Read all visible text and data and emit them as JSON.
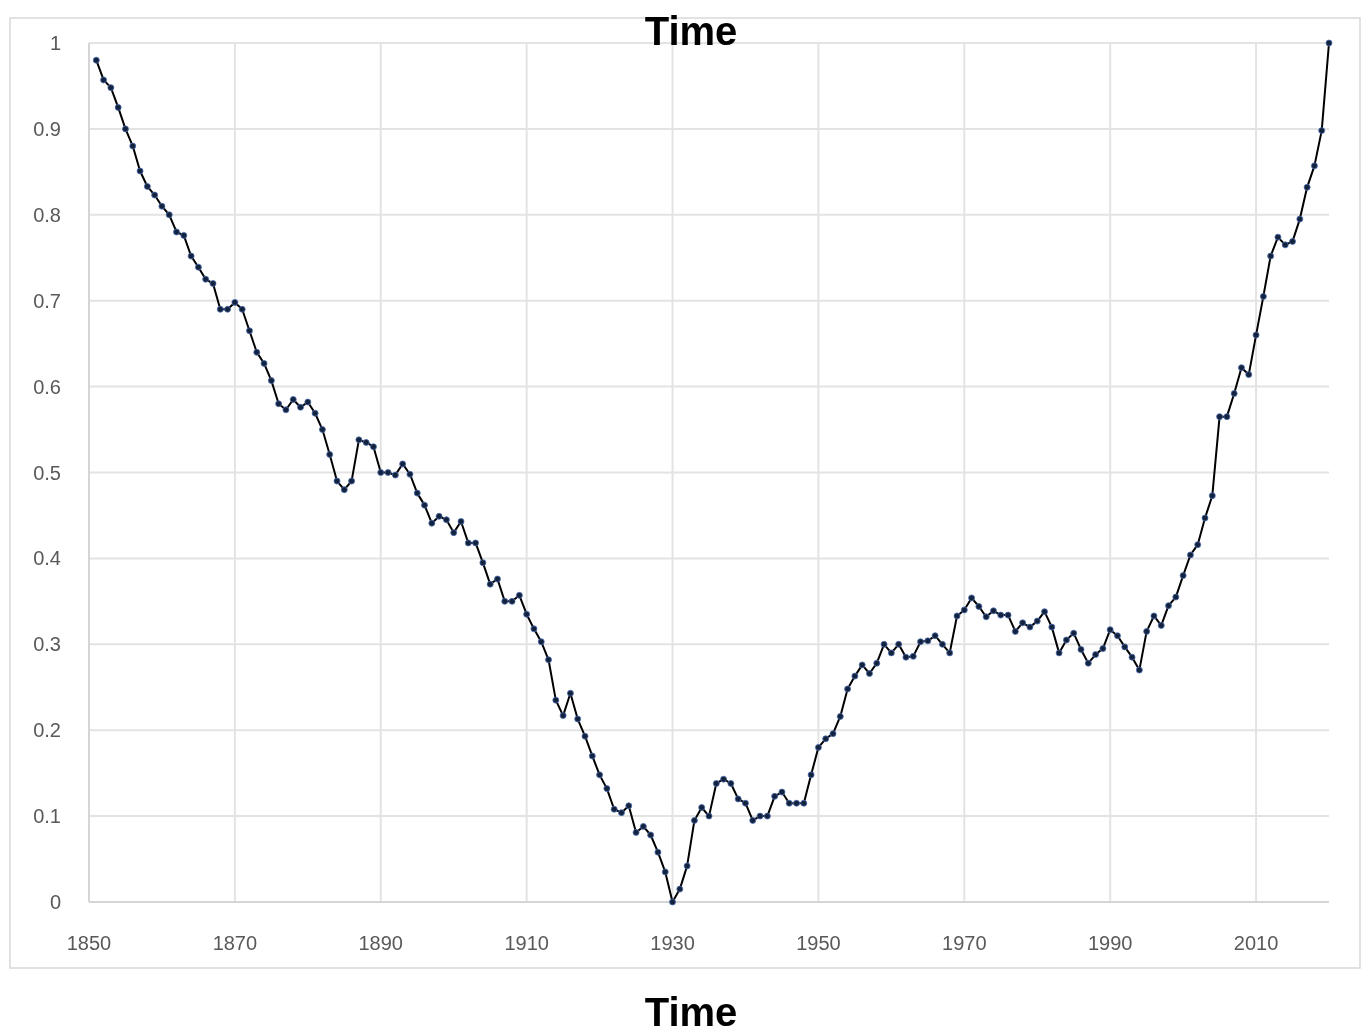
{
  "chart_data": {
    "type": "line",
    "title": "Time",
    "xlabel": "Time",
    "x": [
      1851,
      1852,
      1853,
      1854,
      1855,
      1856,
      1857,
      1858,
      1859,
      1860,
      1861,
      1862,
      1863,
      1864,
      1865,
      1866,
      1867,
      1868,
      1869,
      1870,
      1871,
      1872,
      1873,
      1874,
      1875,
      1876,
      1877,
      1878,
      1879,
      1880,
      1881,
      1882,
      1883,
      1884,
      1885,
      1886,
      1887,
      1888,
      1889,
      1890,
      1891,
      1892,
      1893,
      1894,
      1895,
      1896,
      1897,
      1898,
      1899,
      1900,
      1901,
      1902,
      1903,
      1904,
      1905,
      1906,
      1907,
      1908,
      1909,
      1910,
      1911,
      1912,
      1913,
      1914,
      1915,
      1916,
      1917,
      1918,
      1919,
      1920,
      1921,
      1922,
      1923,
      1924,
      1925,
      1926,
      1927,
      1928,
      1929,
      1930,
      1931,
      1932,
      1933,
      1934,
      1935,
      1936,
      1937,
      1938,
      1939,
      1940,
      1941,
      1942,
      1943,
      1944,
      1945,
      1946,
      1947,
      1948,
      1949,
      1950,
      1951,
      1952,
      1953,
      1954,
      1955,
      1956,
      1957,
      1958,
      1959,
      1960,
      1961,
      1962,
      1963,
      1964,
      1965,
      1966,
      1967,
      1968,
      1969,
      1970,
      1971,
      1972,
      1973,
      1974,
      1975,
      1976,
      1977,
      1978,
      1979,
      1980,
      1981,
      1982,
      1983,
      1984,
      1985,
      1986,
      1987,
      1988,
      1989,
      1990,
      1991,
      1992,
      1993,
      1994,
      1995,
      1996,
      1997,
      1998,
      1999,
      2000,
      2001,
      2002,
      2003,
      2004,
      2005,
      2006,
      2007,
      2008,
      2009,
      2010,
      2011,
      2012,
      2013,
      2014,
      2015,
      2016,
      2017,
      2018,
      2019,
      2020
    ],
    "series": [
      {
        "color": "#000000",
        "values": [
          0.98,
          0.957,
          0.948,
          0.925,
          0.9,
          0.88,
          0.851,
          0.833,
          0.823,
          0.81,
          0.8,
          0.78,
          0.776,
          0.752,
          0.739,
          0.725,
          0.72,
          0.69,
          0.69,
          0.698,
          0.69,
          0.665,
          0.64,
          0.627,
          0.607,
          0.58,
          0.573,
          0.585,
          0.576,
          0.582,
          0.569,
          0.55,
          0.521,
          0.49,
          0.48,
          0.49,
          0.538,
          0.535,
          0.53,
          0.5,
          0.5,
          0.497,
          0.51,
          0.498,
          0.476,
          0.462,
          0.441,
          0.449,
          0.445,
          0.43,
          0.443,
          0.418,
          0.418,
          0.395,
          0.37,
          0.376,
          0.35,
          0.35,
          0.357,
          0.335,
          0.318,
          0.303,
          0.282,
          0.235,
          0.217,
          0.243,
          0.213,
          0.193,
          0.17,
          0.148,
          0.132,
          0.108,
          0.104,
          0.112,
          0.081,
          0.088,
          0.078,
          0.058,
          0.035,
          0.0,
          0.015,
          0.042,
          0.095,
          0.11,
          0.1,
          0.138,
          0.143,
          0.138,
          0.12,
          0.115,
          0.095,
          0.1,
          0.1,
          0.123,
          0.128,
          0.115,
          0.115,
          0.115,
          0.148,
          0.18,
          0.19,
          0.196,
          0.216,
          0.248,
          0.263,
          0.276,
          0.266,
          0.278,
          0.3,
          0.29,
          0.3,
          0.285,
          0.286,
          0.303,
          0.304,
          0.31,
          0.3,
          0.29,
          0.333,
          0.34,
          0.354,
          0.344,
          0.332,
          0.339,
          0.334,
          0.334,
          0.315,
          0.325,
          0.32,
          0.327,
          0.338,
          0.32,
          0.29,
          0.305,
          0.313,
          0.294,
          0.278,
          0.288,
          0.295,
          0.317,
          0.31,
          0.297,
          0.285,
          0.27,
          0.315,
          0.333,
          0.322,
          0.345,
          0.355,
          0.38,
          0.404,
          0.416,
          0.447,
          0.473,
          0.565,
          0.565,
          0.592,
          0.622,
          0.614,
          0.66,
          0.705,
          0.752,
          0.774,
          0.765,
          0.769,
          0.795,
          0.832,
          0.857,
          0.898,
          1.0
        ]
      }
    ],
    "xlim": [
      1850,
      2020
    ],
    "xticks": [
      1850,
      1870,
      1890,
      1910,
      1930,
      1950,
      1970,
      1990,
      2010
    ],
    "ylim": [
      0,
      1
    ],
    "yticks": [
      0,
      0.1,
      0.2,
      0.3,
      0.4,
      0.5,
      0.6,
      0.7,
      0.8,
      0.9,
      1
    ],
    "grid": true,
    "marker": "circle",
    "line_style": "solid"
  }
}
